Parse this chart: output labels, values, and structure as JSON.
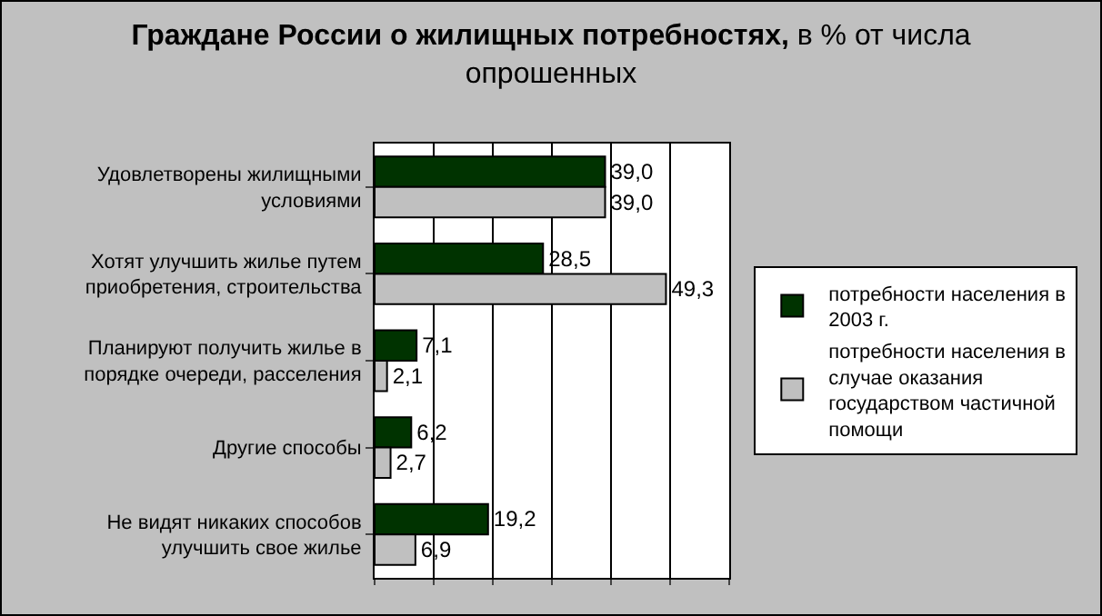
{
  "chart_data": {
    "type": "bar",
    "orientation": "horizontal",
    "title": "Граждане России о жилищных потребностях,",
    "subtitle": "в % от числа опрошенных",
    "categories": [
      "Удовлетворены жилищными условиями",
      "Хотят улучшить жилье путем приобретения, строительства",
      "Планируют получить жилье в порядке очереди, расселения",
      "Другие способы",
      "Не видят никаких способов улучшить свое жилье"
    ],
    "series": [
      {
        "name": "потребности населения в 2003 г.",
        "color": "#003300",
        "values": [
          39.0,
          28.5,
          7.1,
          6.2,
          19.2
        ],
        "value_labels": [
          "39,0",
          "28,5",
          "7,1",
          "6,2",
          "19,2"
        ]
      },
      {
        "name": "потребности населения в случае оказания государством частичной помощи",
        "color": "#c0c0c0",
        "values": [
          39.0,
          49.3,
          2.1,
          2.7,
          6.9
        ],
        "value_labels": [
          "39,0",
          "49,3",
          "2,1",
          "2,7",
          "6,9"
        ]
      }
    ],
    "xlim": [
      0,
      60
    ],
    "xticks": [
      {
        "value": 0,
        "label": null
      },
      {
        "value": 10,
        "label": null
      },
      {
        "value": 20,
        "label": null
      },
      {
        "value": 30,
        "label": null
      },
      {
        "value": 40,
        "label": null
      },
      {
        "value": 50,
        "label": null
      },
      {
        "value": 60,
        "label": null
      }
    ],
    "grid": "x",
    "legend": "right"
  }
}
